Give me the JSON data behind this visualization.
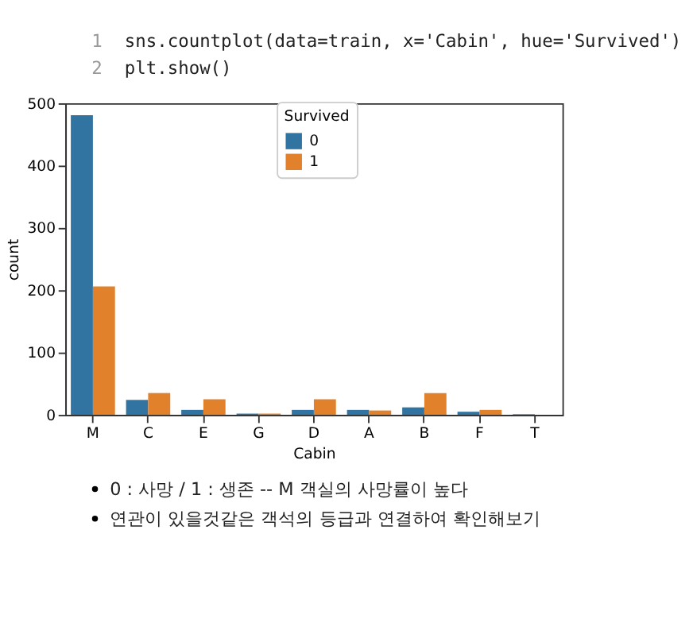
{
  "chart_data": {
    "type": "bar",
    "xlabel": "Cabin",
    "ylabel": "count",
    "legend_title": "Survived",
    "legend": "top",
    "grid": false,
    "categories": [
      "M",
      "C",
      "E",
      "G",
      "D",
      "A",
      "B",
      "F",
      "T"
    ],
    "series": [
      {
        "name": "0",
        "color": "#3274a1",
        "values": [
          481,
          24,
          8,
          2,
          8,
          8,
          12,
          5,
          1
        ]
      },
      {
        "name": "1",
        "color": "#e1812c",
        "values": [
          206,
          35,
          25,
          2,
          25,
          7,
          35,
          8,
          0
        ]
      }
    ],
    "ylim": [
      0,
      500
    ],
    "yticks": [
      0,
      100,
      200,
      300,
      400,
      500
    ],
    "annotations": [
      "1",
      "sns.countplot(data=train, x='Cabin', hue='Survived')",
      "2",
      "plt.show()",
      "0 : 사망 / 1 : 생존 -- M 객실의 사망률이 높다",
      "연관이 있을것같은 객석의 등급과 연결하여 확인해보기"
    ]
  }
}
